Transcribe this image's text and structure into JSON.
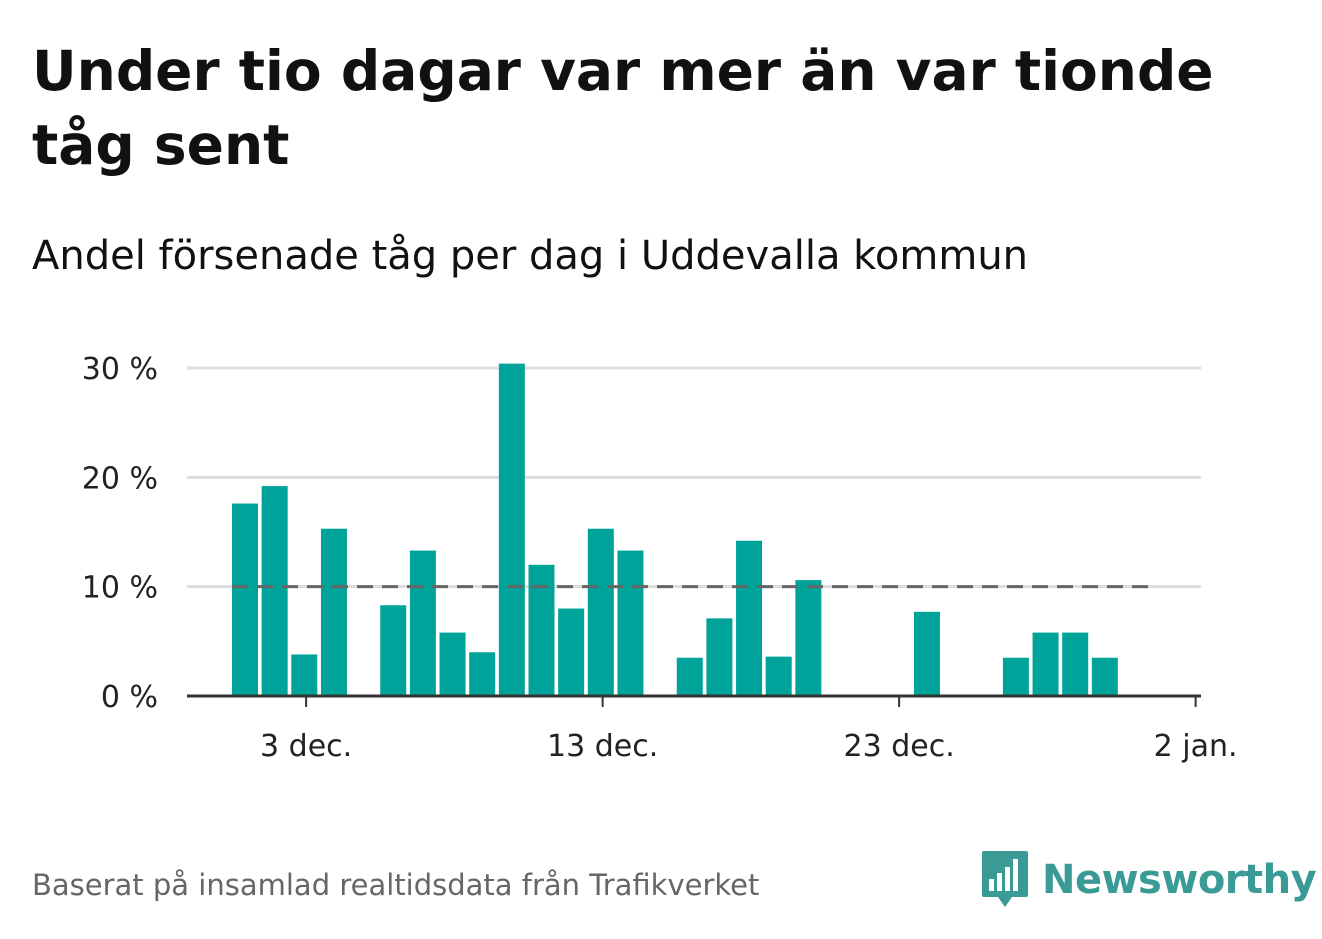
{
  "title": "Under tio dagar var mer än var tionde tåg sent",
  "subtitle": "Andel försenade tåg per dag i Uddevalla kommun",
  "footer": "Baserat på insamlad realtidsdata från Trafikverket",
  "logo": {
    "text": "Newsworthy",
    "icon": "newsworthy-logo-icon"
  },
  "colors": {
    "bar": "#00a399",
    "reference_line": "#666666",
    "grid": "#dddddd",
    "axis": "#333333",
    "logo": "#3a9a96"
  },
  "chart_data": {
    "type": "bar",
    "x": [
      "2024-12-01",
      "2024-12-02",
      "2024-12-03",
      "2024-12-04",
      "2024-12-05",
      "2024-12-06",
      "2024-12-07",
      "2024-12-08",
      "2024-12-09",
      "2024-12-10",
      "2024-12-11",
      "2024-12-12",
      "2024-12-13",
      "2024-12-14",
      "2024-12-15",
      "2024-12-16",
      "2024-12-17",
      "2024-12-18",
      "2024-12-19",
      "2024-12-20",
      "2024-12-21",
      "2024-12-22",
      "2024-12-23",
      "2024-12-24",
      "2024-12-25",
      "2024-12-26",
      "2024-12-27",
      "2024-12-28",
      "2024-12-29",
      "2024-12-30",
      "2024-12-31"
    ],
    "values": [
      17.6,
      19.2,
      3.8,
      15.3,
      0,
      8.3,
      13.3,
      5.8,
      4.0,
      30.4,
      12.0,
      8.0,
      15.3,
      13.3,
      0,
      3.5,
      7.1,
      14.2,
      3.6,
      10.6,
      0,
      0,
      0,
      7.7,
      0,
      0,
      3.5,
      5.8,
      5.8,
      3.5,
      0
    ],
    "reference_line": 10,
    "ylim": [
      0,
      30
    ],
    "yticks": [
      0,
      10,
      20,
      30
    ],
    "ytick_labels": [
      "0 %",
      "10 %",
      "20 %",
      "30 %"
    ],
    "xticks": [
      "2024-12-03",
      "2024-12-13",
      "2024-12-23",
      "2025-01-02"
    ],
    "xtick_labels": [
      "3 dec.",
      "13 dec.",
      "23 dec.",
      "2 jan."
    ],
    "grid": true,
    "legend": false
  }
}
